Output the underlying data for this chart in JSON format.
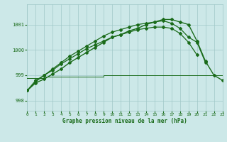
{
  "title": "Graphe pression niveau de la mer (hPa)",
  "bg_color": "#cce8e8",
  "grid_color": "#a0c8c8",
  "line_color": "#1a6b1a",
  "xlim": [
    0,
    23
  ],
  "ylim": [
    997.6,
    1001.8
  ],
  "yticks": [
    998,
    999,
    1000,
    1001
  ],
  "xticks": [
    0,
    1,
    2,
    3,
    4,
    5,
    6,
    7,
    8,
    9,
    10,
    11,
    12,
    13,
    14,
    15,
    16,
    17,
    18,
    19,
    20,
    21,
    22,
    23
  ],
  "hours": [
    0,
    1,
    2,
    3,
    4,
    5,
    6,
    7,
    8,
    9,
    10,
    11,
    12,
    13,
    14,
    15,
    16,
    17,
    18,
    19,
    20,
    21,
    22,
    23
  ],
  "line_flat": [
    998.9,
    998.9,
    998.95,
    998.95,
    998.95,
    998.95,
    998.95,
    998.95,
    998.95,
    999.0,
    999.0,
    999.0,
    999.0,
    999.0,
    999.0,
    999.0,
    999.0,
    999.0,
    999.0,
    999.0,
    999.0,
    999.0,
    999.0,
    999.0
  ],
  "line_mid": [
    998.4,
    998.8,
    999.0,
    999.2,
    999.45,
    999.65,
    999.85,
    1000.05,
    1000.2,
    1000.35,
    1000.5,
    1000.6,
    1000.7,
    1000.8,
    1000.85,
    1000.9,
    1000.9,
    1000.85,
    1000.65,
    1000.3,
    999.8,
    null,
    null,
    null
  ],
  "line_high": [
    998.4,
    998.75,
    999.0,
    999.25,
    999.5,
    999.75,
    999.95,
    1000.15,
    1000.35,
    1000.55,
    1000.7,
    1000.8,
    1000.9,
    1001.0,
    1001.05,
    1001.1,
    1001.15,
    1001.05,
    1000.85,
    1000.5,
    1000.3,
    999.5,
    null,
    null
  ],
  "line_full": [
    998.4,
    998.7,
    998.85,
    999.05,
    999.25,
    999.5,
    999.7,
    999.9,
    1000.1,
    1000.3,
    1000.5,
    1000.6,
    1000.75,
    1000.85,
    1001.0,
    1001.1,
    1001.2,
    1001.2,
    1001.1,
    1001.0,
    1000.35,
    999.55,
    999.0,
    998.8
  ]
}
